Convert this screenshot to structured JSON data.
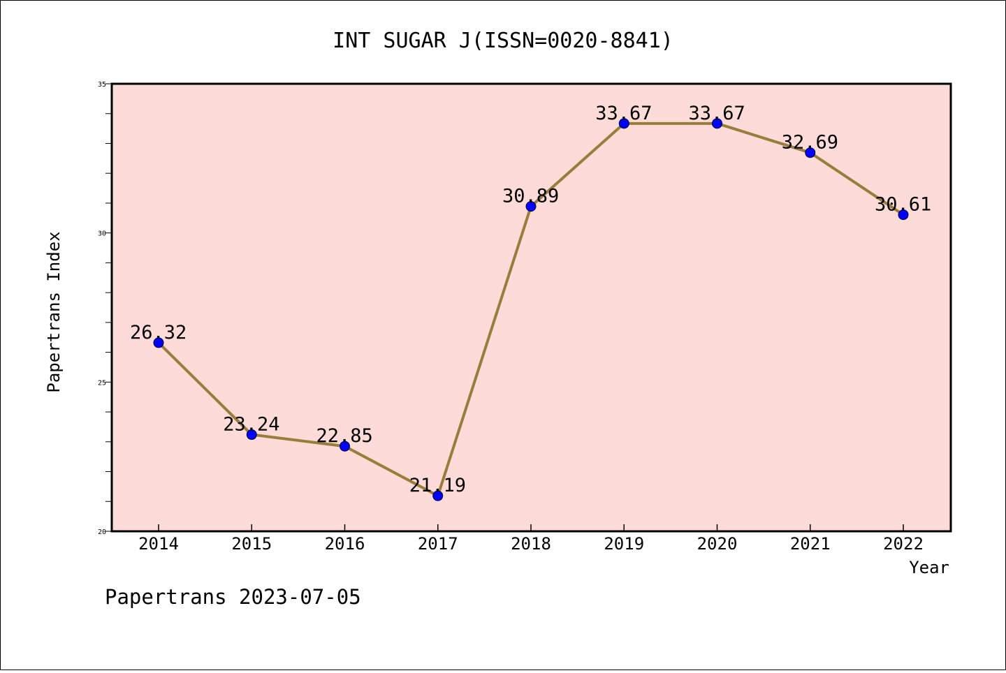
{
  "chart_data": {
    "type": "line",
    "title": "INT SUGAR J(ISSN=0020-8841)",
    "xlabel": "Year",
    "ylabel": "Papertrans Index",
    "categories": [
      "2014",
      "2015",
      "2016",
      "2017",
      "2018",
      "2019",
      "2020",
      "2021",
      "2022"
    ],
    "series": [
      {
        "values": [
          26.32,
          23.24,
          22.85,
          21.19,
          30.89,
          33.67,
          33.67,
          32.69,
          30.61
        ],
        "labels": [
          "26.32",
          "23.24",
          "22.85",
          "21.19",
          "30.89",
          "33.67",
          "33.67",
          "32.69",
          "30.61"
        ]
      }
    ],
    "ylim": [
      20,
      35
    ],
    "y_ticks": [
      "20",
      "25",
      "30",
      "35"
    ],
    "grid": false,
    "colors": {
      "plot_background": "#fddbd8",
      "line": "#9a7d3a",
      "marker": "#0000ff"
    }
  },
  "footer": "Papertrans 2023-07-05"
}
